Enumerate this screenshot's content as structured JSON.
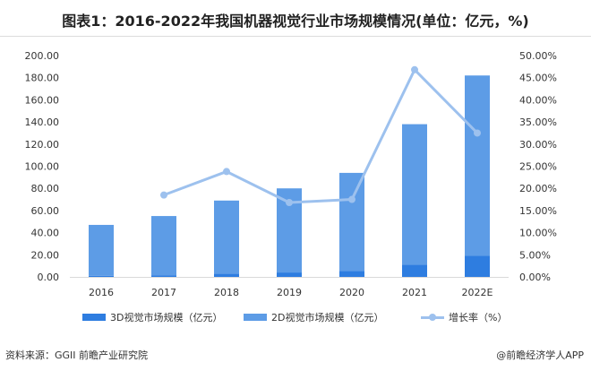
{
  "title": "图表1：2016-2022年我国机器视觉行业市场规模情况(单位：亿元，%)",
  "source": "资料来源：GGII 前瞻产业研究院",
  "brand": "@前瞻经济学人APP",
  "colors": {
    "series_3d": "#2e7de0",
    "series_2d": "#5d9ce6",
    "growth": "#9dc1ee",
    "grid": "#e6e6e6",
    "axis_text": "#333333"
  },
  "chart_data": {
    "type": "bar",
    "categories": [
      "2016",
      "2017",
      "2018",
      "2019",
      "2020",
      "2021",
      "2022E"
    ],
    "series": [
      {
        "name": "3D视觉市场规模（亿元）",
        "kind": "bar",
        "axis": "left",
        "values": [
          1.0,
          1.5,
          3.0,
          4.0,
          5.5,
          11.0,
          19.0
        ]
      },
      {
        "name": "2D视觉市场规模（亿元）",
        "kind": "bar",
        "axis": "left",
        "values": [
          46.0,
          53.5,
          66.0,
          76.0,
          88.5,
          127.0,
          163.0
        ]
      },
      {
        "name": "增长率（%）",
        "kind": "line",
        "axis": "right",
        "values": [
          null,
          18.5,
          23.8,
          16.8,
          17.5,
          46.8,
          32.5
        ]
      }
    ],
    "stacked": true,
    "ylim": [
      0,
      200
    ],
    "y_ticks": [
      "0.00",
      "20.00",
      "40.00",
      "60.00",
      "80.00",
      "100.00",
      "120.00",
      "140.00",
      "160.00",
      "180.00",
      "200.00"
    ],
    "y2lim": [
      0,
      50
    ],
    "y2_ticks": [
      "0.00%",
      "5.00%",
      "10.00%",
      "15.00%",
      "20.00%",
      "25.00%",
      "30.00%",
      "35.00%",
      "40.00%",
      "45.00%",
      "50.00%"
    ],
    "grid": false,
    "legend_position": "bottom"
  }
}
